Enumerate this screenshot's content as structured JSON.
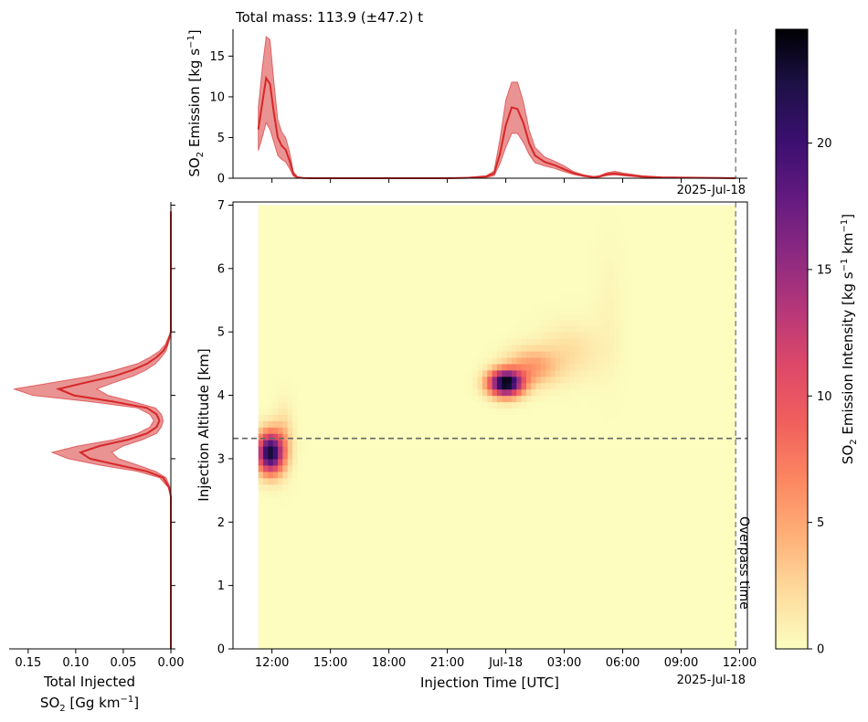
{
  "chart_data": [
    {
      "panel": "emission-timeseries",
      "type": "area",
      "title": "Total mass: 113.9 (±47.2) t",
      "ylabel_main": "SO",
      "ylabel_sub": "2",
      "ylabel_tail": " Emission [kg s",
      "ylabel_sup": "−1",
      "ylabel_close": "]",
      "date_label": "2025-Jul-18",
      "ylim": [
        0,
        18.3
      ],
      "yticks": [
        0,
        5,
        10,
        15
      ],
      "ytick_labels": [
        "0",
        "5",
        "10",
        "15"
      ],
      "series": [
        {
          "color": "#d62728",
          "t": [
            11.3,
            11.5,
            11.7,
            11.9,
            12.1,
            12.3,
            12.5,
            12.7,
            12.9,
            13.1,
            13.3,
            13.6,
            14.0,
            20.0,
            21.0,
            22.0,
            23.0,
            23.4,
            23.7,
            24.0,
            24.3,
            24.6,
            24.9,
            25.2,
            25.5,
            26.0,
            26.5,
            27.0,
            27.5,
            28.0,
            28.5,
            28.8,
            29.2,
            29.6,
            30.0,
            31.0,
            32.0,
            35.0,
            35.8
          ],
          "y": [
            6.0,
            9.2,
            12.3,
            11.6,
            8.0,
            5.0,
            4.0,
            3.5,
            2.2,
            0.5,
            0.1,
            0.03,
            0.0,
            0.0,
            0.0,
            0.05,
            0.2,
            0.6,
            3.0,
            6.5,
            8.7,
            8.5,
            6.8,
            4.3,
            2.8,
            2.0,
            1.6,
            1.1,
            0.6,
            0.3,
            0.15,
            0.2,
            0.5,
            0.6,
            0.45,
            0.2,
            0.1,
            0.02,
            0.0
          ],
          "lower": [
            3.4,
            5.0,
            6.8,
            6.0,
            4.4,
            2.8,
            2.3,
            2.0,
            1.2,
            0.25,
            0.05,
            0.0,
            0.0,
            0.0,
            0.0,
            0.02,
            0.1,
            0.3,
            1.8,
            3.8,
            5.5,
            5.5,
            4.4,
            2.9,
            1.9,
            1.5,
            1.2,
            0.8,
            0.45,
            0.2,
            0.1,
            0.13,
            0.32,
            0.4,
            0.3,
            0.12,
            0.05,
            0.01,
            0.0
          ],
          "upper": [
            8.7,
            13.5,
            17.4,
            17.0,
            11.8,
            7.2,
            5.7,
            5.0,
            3.3,
            0.8,
            0.2,
            0.05,
            0.0,
            0.0,
            0.0,
            0.08,
            0.3,
            0.9,
            4.8,
            9.6,
            11.8,
            11.8,
            9.4,
            5.9,
            3.8,
            2.6,
            2.1,
            1.5,
            0.8,
            0.42,
            0.2,
            0.3,
            0.7,
            0.85,
            0.65,
            0.3,
            0.15,
            0.03,
            0.0
          ]
        }
      ]
    },
    {
      "panel": "emission-intensity-heatmap",
      "type": "heatmap",
      "xlabel": "Injection Time [UTC]",
      "ylabel": "Injection Altitude [km]",
      "date_label": "2025-Jul-18",
      "xlim": [
        10.0,
        36.4
      ],
      "ylim": [
        0,
        7.05
      ],
      "xticks": [
        12,
        15,
        18,
        21,
        24,
        27,
        30,
        33,
        36
      ],
      "xtick_labels": [
        "12:00",
        "15:00",
        "18:00",
        "21:00",
        "Jul-18",
        "03:00",
        "06:00",
        "09:00",
        "12:00"
      ],
      "yticks": [
        0,
        1,
        2,
        3,
        4,
        5,
        6,
        7
      ],
      "ytick_labels": [
        "0",
        "1",
        "2",
        "3",
        "4",
        "5",
        "6",
        "7"
      ],
      "data_extent": {
        "t": [
          11.3,
          35.8
        ],
        "z": [
          0,
          7.0
        ]
      },
      "background_value": 0,
      "blobs": [
        {
          "t": 11.9,
          "z": 3.1,
          "peak": 23.0,
          "st": 0.45,
          "sz": 0.22
        },
        {
          "t": 12.6,
          "z": 3.3,
          "peak": 3.0,
          "st": 0.35,
          "sz": 0.35
        },
        {
          "t": 24.0,
          "z": 4.2,
          "peak": 24.5,
          "st": 0.6,
          "sz": 0.14
        },
        {
          "t": 25.3,
          "z": 4.45,
          "peak": 5.5,
          "st": 0.9,
          "sz": 0.2
        },
        {
          "t": 27.3,
          "z": 4.7,
          "peak": 2.0,
          "st": 1.1,
          "sz": 0.3
        },
        {
          "t": 29.3,
          "z": 5.3,
          "peak": 0.6,
          "st": 0.5,
          "sz": 0.7
        }
      ],
      "hline_altitude": 3.32,
      "overpass_time": 35.8,
      "overpass_label": "Overpass time"
    },
    {
      "panel": "total-injected-profile",
      "type": "line",
      "xlabel_line1": "Total Injected",
      "xlabel_line2_main": "SO",
      "xlabel_line2_sub": "2",
      "xlabel_line2_tail": " [Gg km",
      "xlabel_line2_sup": "−1",
      "xlabel_line2_close": "]",
      "xlim": [
        0.17,
        0.0
      ],
      "xticks": [
        0.15,
        0.1,
        0.05,
        0.0
      ],
      "xtick_labels": [
        "0.15",
        "0.10",
        "0.05",
        "0.00"
      ],
      "series": [
        {
          "color": "#d62728",
          "z": [
            0.0,
            2.4,
            2.55,
            2.7,
            2.8,
            2.9,
            3.0,
            3.1,
            3.2,
            3.3,
            3.4,
            3.5,
            3.6,
            3.7,
            3.8,
            3.9,
            4.0,
            4.1,
            4.2,
            4.3,
            4.4,
            4.5,
            4.6,
            4.7,
            4.8,
            4.9,
            5.0,
            6.9
          ],
          "x": [
            0.0,
            0.0,
            0.002,
            0.008,
            0.025,
            0.055,
            0.085,
            0.095,
            0.075,
            0.045,
            0.025,
            0.015,
            0.012,
            0.015,
            0.025,
            0.06,
            0.102,
            0.118,
            0.09,
            0.06,
            0.04,
            0.025,
            0.015,
            0.008,
            0.004,
            0.002,
            0.0,
            0.0
          ],
          "upper": [
            0.0,
            0.0,
            0.003,
            0.012,
            0.035,
            0.075,
            0.108,
            0.125,
            0.098,
            0.06,
            0.035,
            0.022,
            0.018,
            0.022,
            0.035,
            0.085,
            0.145,
            0.165,
            0.125,
            0.085,
            0.058,
            0.035,
            0.022,
            0.012,
            0.006,
            0.003,
            0.0,
            0.0
          ],
          "lower": [
            0.0,
            0.0,
            0.001,
            0.005,
            0.016,
            0.035,
            0.055,
            0.062,
            0.05,
            0.03,
            0.015,
            0.01,
            0.008,
            0.01,
            0.016,
            0.04,
            0.066,
            0.078,
            0.06,
            0.04,
            0.026,
            0.016,
            0.01,
            0.005,
            0.003,
            0.001,
            0.0,
            0.0
          ]
        }
      ]
    },
    {
      "panel": "colorbar",
      "type": "colorbar",
      "range": [
        0,
        24.5
      ],
      "ticks": [
        0,
        5,
        10,
        15,
        20
      ],
      "tick_labels": [
        "0",
        "5",
        "10",
        "15",
        "20"
      ],
      "label_main": "SO",
      "label_sub": "2",
      "label_tail": " Emission Intensity [kg s",
      "label_sup1": "−1",
      "label_mid": " km",
      "label_sup2": "−1",
      "label_close": "]",
      "colormap": [
        "#fcfdbf",
        "#fddc9e",
        "#feb078",
        "#fc8761",
        "#f1605d",
        "#de4968",
        "#b73779",
        "#8c2981",
        "#641a80",
        "#3b0f70",
        "#1d1147",
        "#000004"
      ]
    }
  ]
}
